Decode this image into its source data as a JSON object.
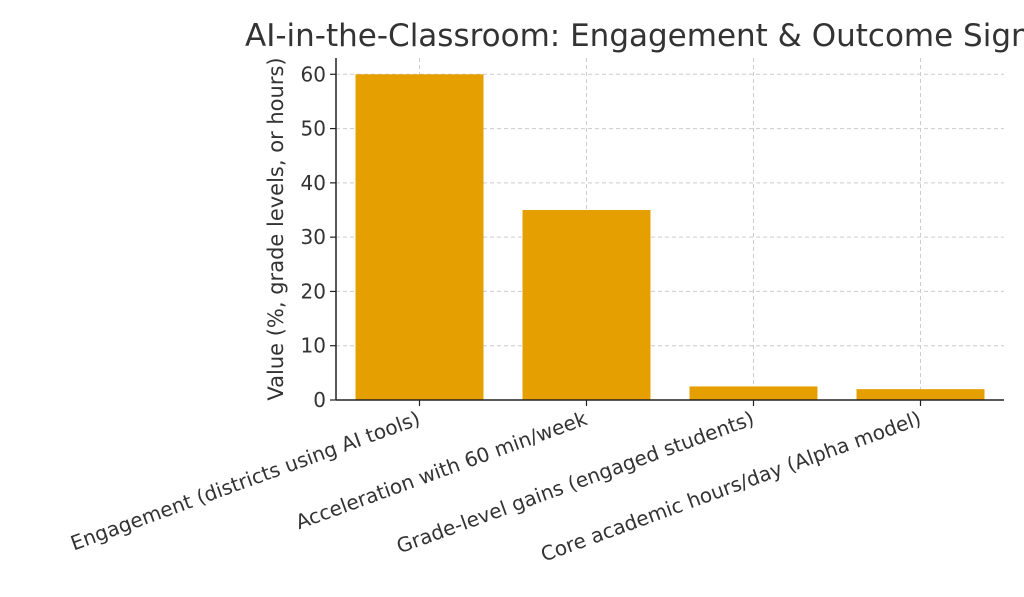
{
  "chart_data": {
    "type": "bar",
    "title": "AI-in-the-Classroom: Engagement & Outcome Signals",
    "xlabel": "",
    "ylabel": "Value (%, grade levels, or hours)",
    "categories": [
      "Engagement (districts using AI tools)",
      "Acceleration with 60 min/week",
      "Grade-level gains (engaged students)",
      "Core academic hours/day (Alpha model)"
    ],
    "values": [
      60,
      35,
      2.5,
      2
    ],
    "ylim": [
      0,
      63
    ],
    "yticks": [
      0,
      10,
      20,
      30,
      40,
      50,
      60
    ],
    "grid": true,
    "bar_color": "#E5A000",
    "grid_color": "#CCCCCC",
    "axis_color": "#222222"
  }
}
